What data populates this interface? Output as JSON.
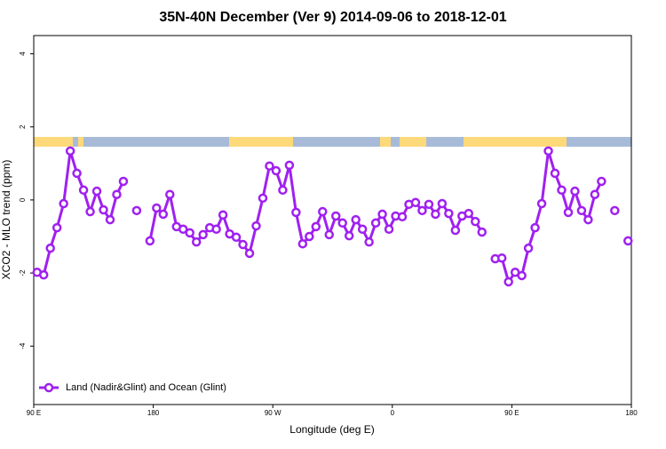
{
  "chart_data": {
    "type": "line",
    "title": "35N-40N December (Ver 9)   2014-09-06 to 2018-12-01",
    "x_label": "Longitude (deg E)",
    "y_label": "XCO2 - MLO trend (ppm)",
    "x": [
      92.5,
      97.5,
      102.5,
      107.5,
      112.5,
      117.5,
      122.5,
      127.5,
      132.5,
      137.5,
      142.5,
      147.5,
      152.5,
      157.5,
      162.5,
      167.5,
      172.5,
      177.5,
      182.5,
      187.5,
      192.5,
      197.5,
      202.5,
      207.5,
      212.5,
      217.5,
      222.5,
      227.5,
      232.5,
      237.5,
      242.5,
      247.5,
      252.5,
      257.5,
      262.5,
      267.5,
      272.5,
      277.5,
      282.5,
      287.5,
      292.5,
      297.5,
      302.5,
      307.5,
      312.5,
      317.5,
      322.5,
      327.5,
      332.5,
      337.5,
      342.5,
      347.5,
      352.5,
      357.5,
      362.5,
      367.5,
      372.5,
      377.5,
      382.5,
      387.5,
      392.5,
      397.5,
      402.5,
      407.5,
      412.5,
      417.5,
      422.5,
      427.5,
      432.5,
      437.5,
      442.5,
      447.5,
      452.5,
      457.5,
      462.5,
      467.5,
      472.5,
      477.5,
      482.5,
      487.5,
      492.5,
      497.5,
      502.5,
      507.5,
      512.5,
      517.5,
      522.5,
      527.5,
      532.5,
      537.5
    ],
    "series": [
      {
        "name": "Land (Nadir&Glint) and Ocean (Glint)",
        "color": "#a020f0",
        "values": [
          -1.98,
          -2.05,
          -1.32,
          -0.76,
          -0.1,
          1.34,
          0.73,
          0.27,
          -0.32,
          0.24,
          -0.27,
          -0.54,
          0.15,
          0.51,
          null,
          -0.29,
          null,
          -1.12,
          -0.22,
          -0.39,
          0.15,
          -0.73,
          -0.8,
          -0.9,
          -1.15,
          -0.95,
          -0.76,
          -0.8,
          -0.41,
          -0.93,
          -1.02,
          -1.22,
          -1.46,
          -0.71,
          0.05,
          0.93,
          0.8,
          0.27,
          0.95,
          -0.34,
          -1.2,
          -1.0,
          -0.73,
          -0.32,
          -0.95,
          -0.44,
          -0.63,
          -0.98,
          -0.54,
          -0.8,
          -1.15,
          -0.63,
          -0.39,
          -0.8,
          -0.44,
          -0.46,
          -0.12,
          -0.07,
          -0.29,
          -0.12,
          -0.39,
          -0.1,
          -0.37,
          -0.83,
          -0.44,
          -0.37,
          -0.59,
          -0.88,
          null,
          -1.61,
          -1.59,
          -2.24,
          -1.98,
          -2.07,
          -1.32,
          -0.76,
          -0.1,
          1.34,
          0.73,
          0.27,
          -0.34,
          0.24,
          -0.29,
          -0.54,
          0.15,
          0.51,
          null,
          -0.29,
          null,
          -1.12
        ]
      }
    ],
    "xlim": [
      90,
      540
    ],
    "xticks": [
      {
        "value": 90,
        "label": "90 E"
      },
      {
        "value": 180,
        "label": "180"
      },
      {
        "value": 270,
        "label": "90 W"
      },
      {
        "value": 360,
        "label": "0"
      },
      {
        "value": 450,
        "label": "90 E"
      },
      {
        "value": 540,
        "label": "180"
      }
    ],
    "ylim": [
      -5.6,
      4.5
    ],
    "yticks": [
      -4,
      -2,
      0,
      2,
      4
    ],
    "legend": "bottom-left"
  }
}
